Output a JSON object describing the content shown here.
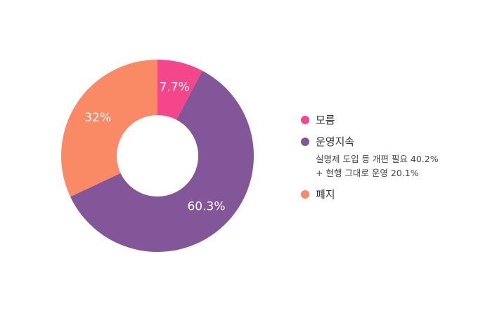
{
  "chart_data": {
    "type": "pie",
    "donut": true,
    "categories": [
      "모름",
      "운영지속",
      "폐지"
    ],
    "values": [
      7.7,
      60.3,
      32
    ],
    "data_labels": [
      "7.7%",
      "60.3%",
      "32%"
    ],
    "colors": [
      "#f5468c",
      "#835699",
      "#fa8a66"
    ],
    "legend_position": "right",
    "legend": {
      "items": [
        {
          "label": "모름",
          "color": "#f5468c",
          "sub": []
        },
        {
          "label": "운영지속",
          "color": "#835699",
          "sub": [
            "실명제 도입 등 개편 필요 40.2%",
            "+ 현행 그대로 운영 20.1%"
          ]
        },
        {
          "label": "폐지",
          "color": "#fa8a66",
          "sub": []
        }
      ]
    }
  }
}
